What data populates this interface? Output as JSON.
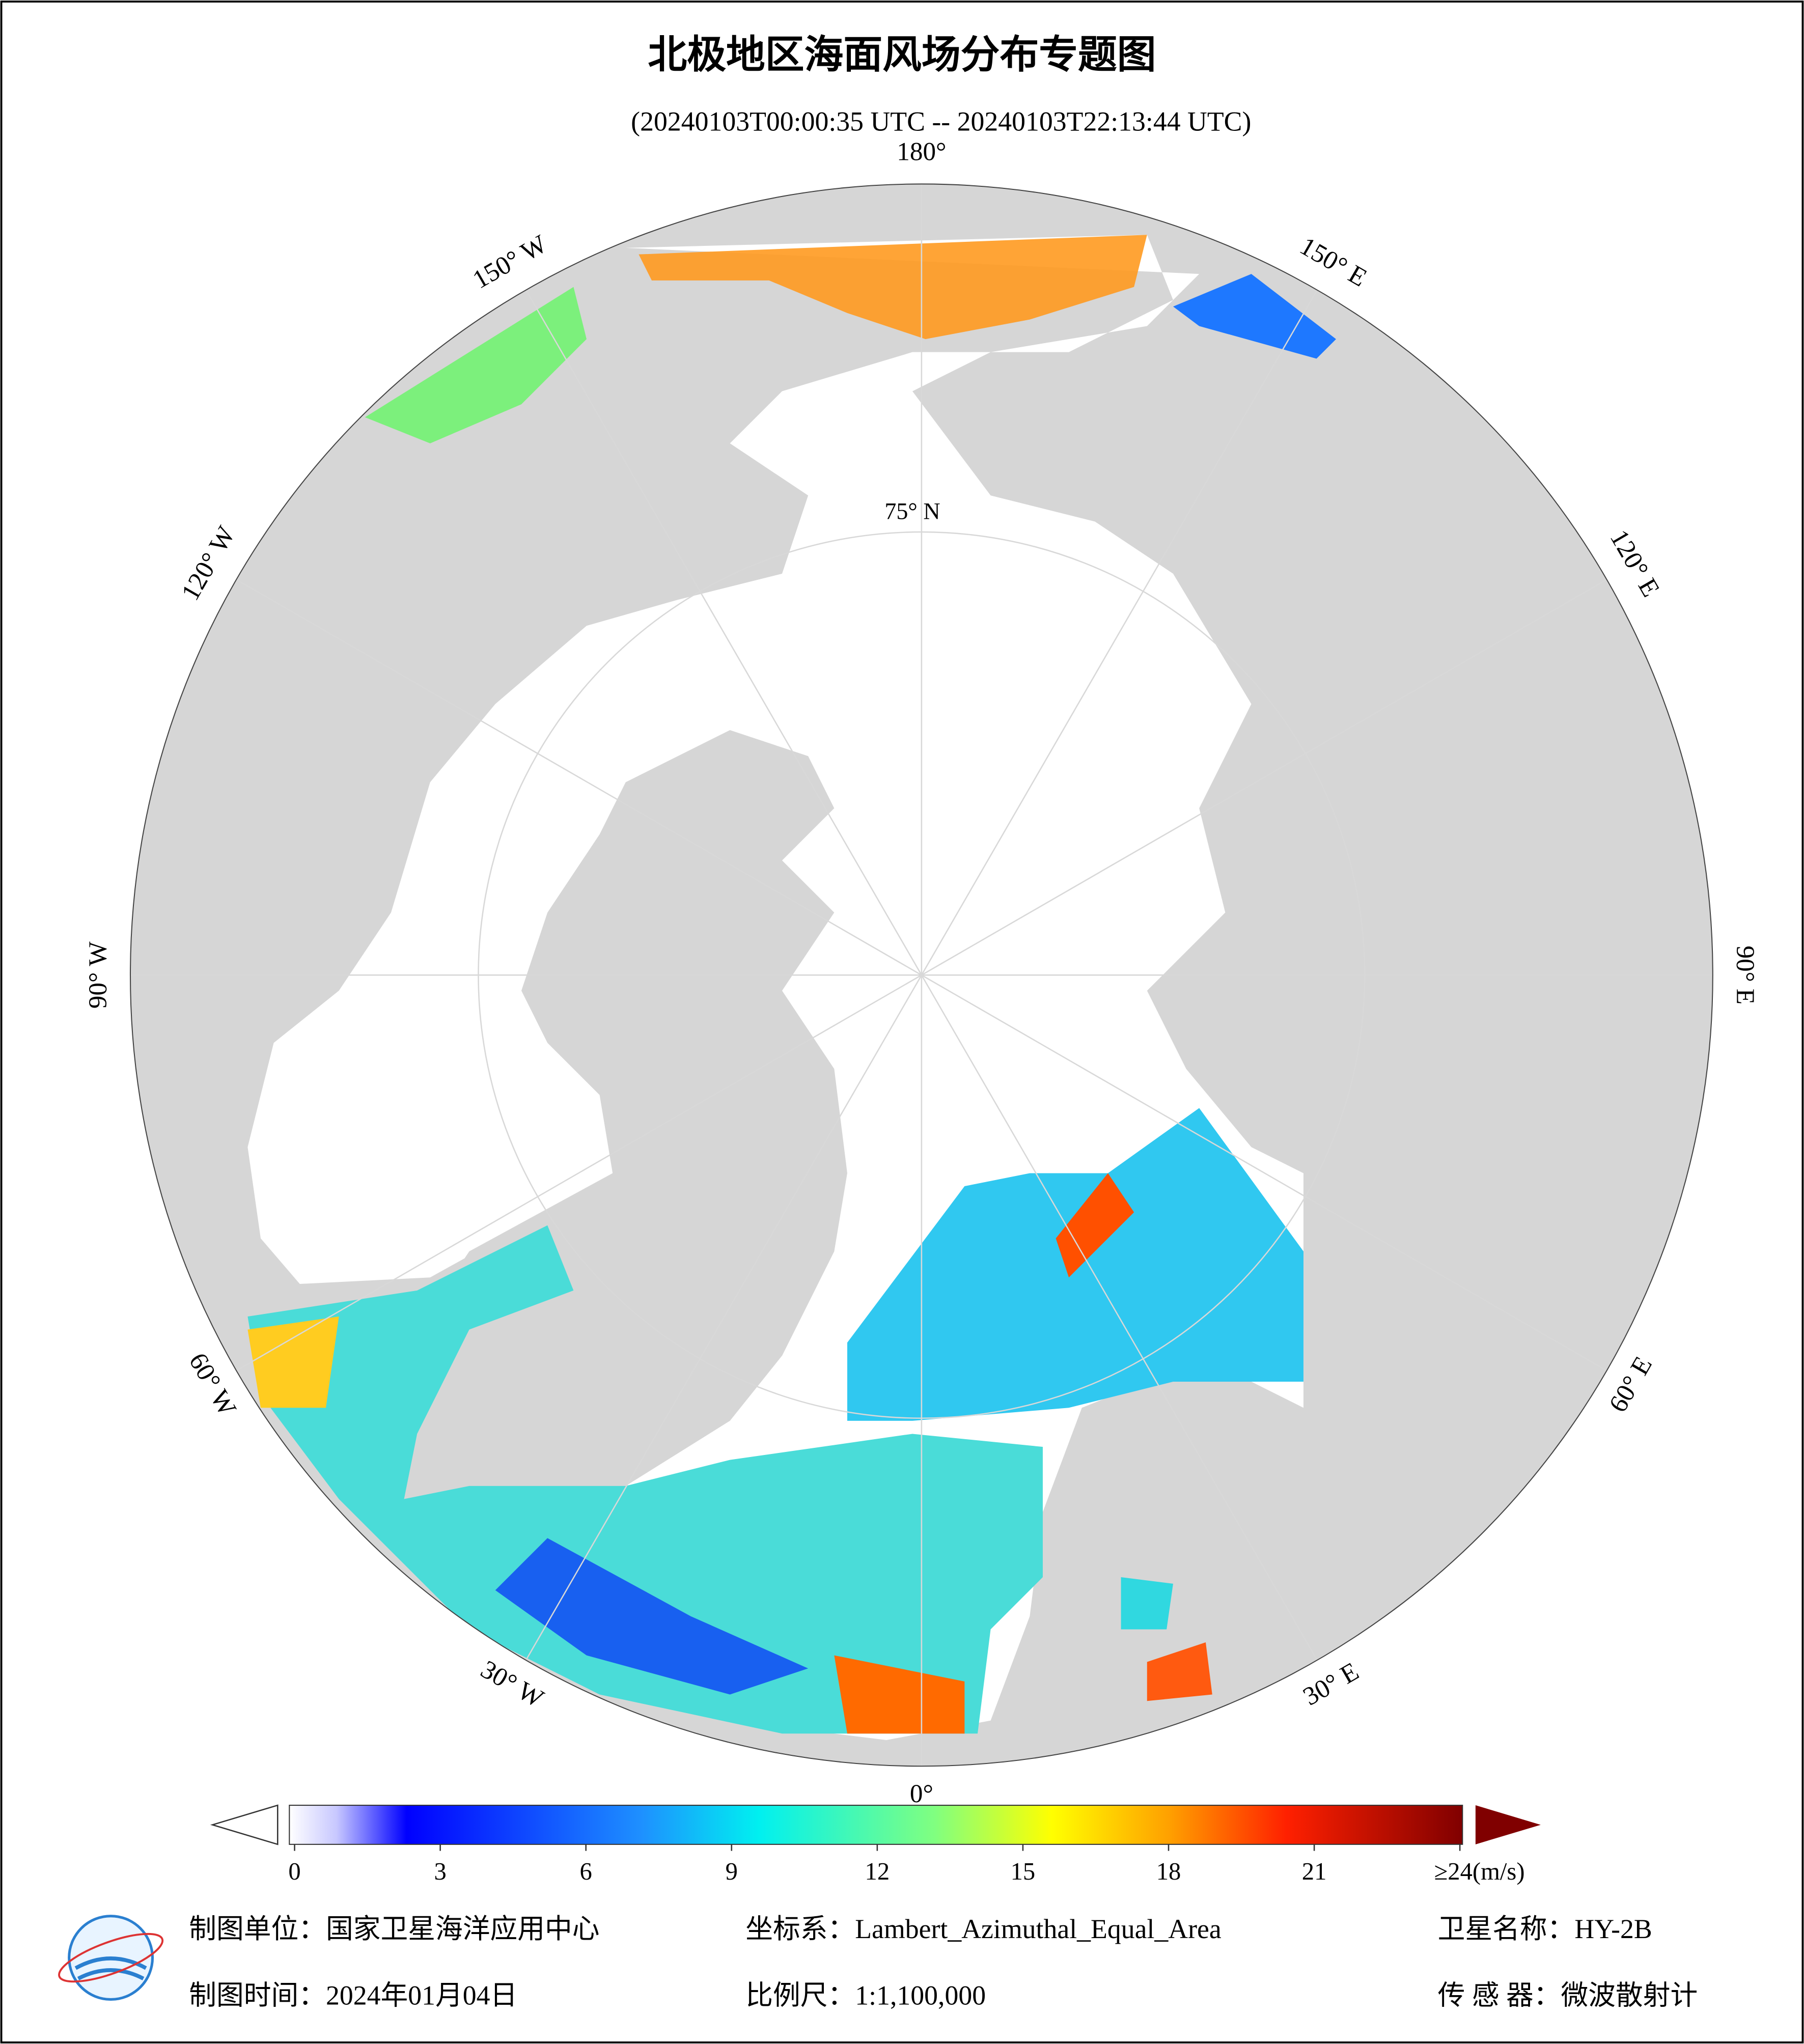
{
  "header": {
    "title": "北极地区海面风场分布专题图",
    "subtitle": "(20240103T00:00:35 UTC -- 20240103T22:13:44 UTC)"
  },
  "map": {
    "lon_labels": [
      "0°",
      "30° E",
      "60° E",
      "90° E",
      "120° E",
      "150° E",
      "180°",
      "150° W",
      "120° W",
      "90° W",
      "60° W",
      "30° W"
    ],
    "lat_label": "75° N"
  },
  "colorbar": {
    "lim": [
      0,
      24
    ],
    "ticks": [
      0,
      3,
      6,
      9,
      12,
      15,
      18,
      21,
      {
        "value": 24,
        "label": "≥24(m/s)"
      }
    ]
  },
  "footer": {
    "unit": "制图单位：国家卫星海洋应用中心",
    "crs": "坐标系：Lambert_Azimuthal_Equal_Area",
    "satellite": "卫星名称：HY-2B",
    "date": "制图时间：2024年01月04日",
    "scale": "比例尺：1:1,100,000",
    "sensor": "传 感 器：微波散射计"
  }
}
